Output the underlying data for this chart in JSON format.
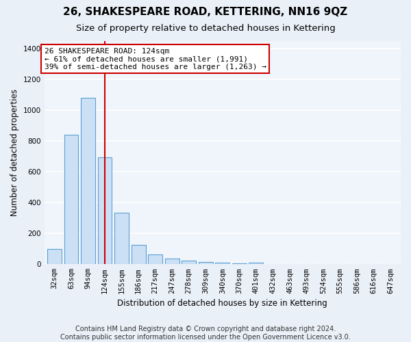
{
  "title": "26, SHAKESPEARE ROAD, KETTERING, NN16 9QZ",
  "subtitle": "Size of property relative to detached houses in Kettering",
  "xlabel": "Distribution of detached houses by size in Kettering",
  "ylabel": "Number of detached properties",
  "categories": [
    "32sqm",
    "63sqm",
    "94sqm",
    "124sqm",
    "155sqm",
    "186sqm",
    "217sqm",
    "247sqm",
    "278sqm",
    "309sqm",
    "340sqm",
    "370sqm",
    "401sqm",
    "432sqm",
    "463sqm",
    "493sqm",
    "524sqm",
    "555sqm",
    "586sqm",
    "616sqm",
    "647sqm"
  ],
  "values": [
    100,
    840,
    1080,
    695,
    335,
    125,
    65,
    35,
    22,
    15,
    12,
    8,
    12,
    0,
    0,
    0,
    0,
    0,
    0,
    0,
    0
  ],
  "bar_color": "#cce0f5",
  "bar_edge_color": "#5a9fd4",
  "vline_x": 3,
  "vline_color": "#cc0000",
  "annotation_line1": "26 SHAKESPEARE ROAD: 124sqm",
  "annotation_line2": "← 61% of detached houses are smaller (1,991)",
  "annotation_line3": "39% of semi-detached houses are larger (1,263) →",
  "annotation_box_color": "#ffffff",
  "annotation_box_edge_color": "#cc0000",
  "ylim": [
    0,
    1450
  ],
  "yticks": [
    0,
    200,
    400,
    600,
    800,
    1000,
    1200,
    1400
  ],
  "bg_color": "#eaf0f8",
  "plot_bg_color": "#f0f5fb",
  "grid_color": "#ffffff",
  "footer": "Contains HM Land Registry data © Crown copyright and database right 2024.\nContains public sector information licensed under the Open Government Licence v3.0.",
  "title_fontsize": 11,
  "subtitle_fontsize": 9.5,
  "label_fontsize": 8.5,
  "tick_fontsize": 7.5,
  "ann_fontsize": 8,
  "footer_fontsize": 7
}
